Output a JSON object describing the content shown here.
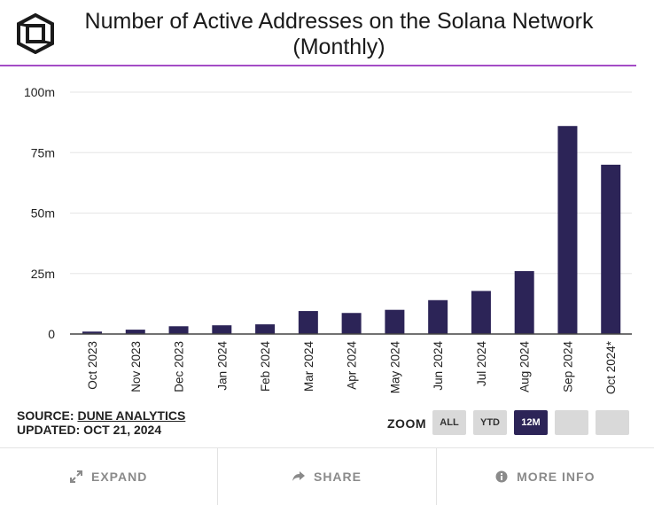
{
  "header": {
    "title_line1": "Number of Active Addresses on the Solana Network",
    "title_line2": "(Monthly)",
    "logo_icon": "cube-logo-icon"
  },
  "chart_data": {
    "type": "bar",
    "title": "Number of Active Addresses on the Solana Network (Monthly)",
    "categories": [
      "Oct 2023",
      "Nov 2023",
      "Dec 2023",
      "Jan 2024",
      "Feb 2024",
      "Mar 2024",
      "Apr 2024",
      "May 2024",
      "Jun 2024",
      "Jul 2024",
      "Aug 2024",
      "Sep 2024",
      "Oct 2024*"
    ],
    "values": [
      1,
      1.8,
      3.2,
      3.6,
      4,
      9.5,
      8.7,
      10,
      14,
      17.8,
      26,
      86,
      70
    ],
    "unit": "m",
    "ylim": [
      0,
      100
    ],
    "yticks": [
      0,
      25,
      50,
      75,
      100
    ],
    "ytick_labels": [
      "0",
      "25m",
      "50m",
      "75m",
      "100m"
    ],
    "grid": true,
    "colors": {
      "bar": "#2c2457",
      "title_rule": "#a44cc6"
    }
  },
  "source": {
    "source_prefix": "SOURCE: ",
    "source_name": "DUNE ANALYTICS",
    "updated": "UPDATED: OCT 21, 2024"
  },
  "zoom": {
    "label": "ZOOM",
    "buttons": [
      "ALL",
      "YTD",
      "12M",
      "",
      ""
    ],
    "active": "12M"
  },
  "footer": {
    "expand": "EXPAND",
    "share": "SHARE",
    "more_info": "MORE INFO"
  }
}
